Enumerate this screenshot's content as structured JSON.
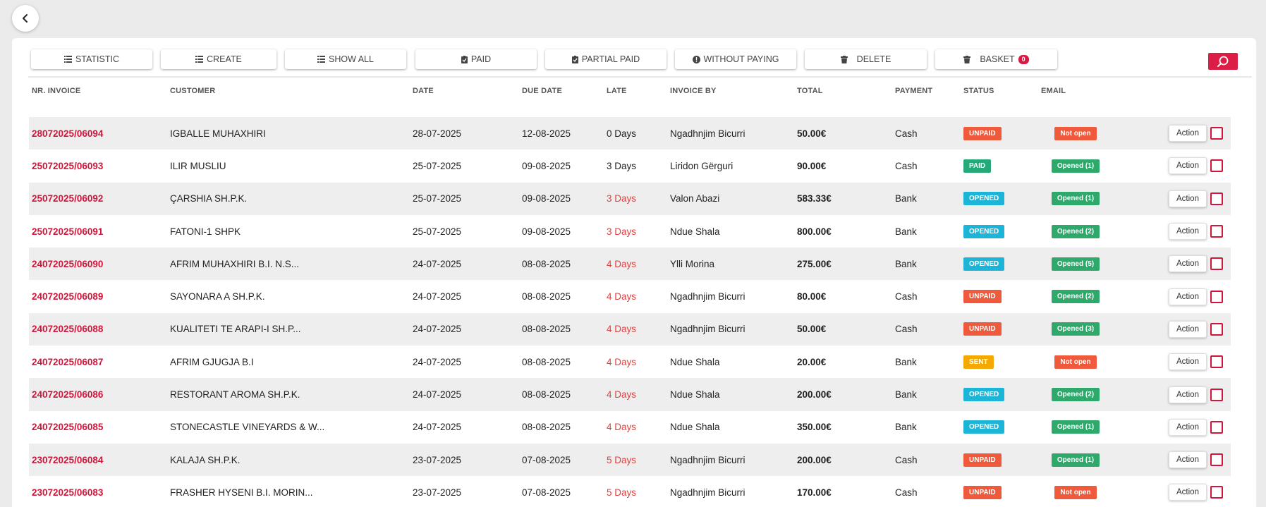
{
  "toolbar": {
    "statistic": "STATISTIC",
    "create": "CREATE",
    "show_all": "SHOW ALL",
    "paid": "PAID",
    "partial_paid": "PARTIAL PAID",
    "without_paying": "WITHOUT PAYING",
    "delete": "DELETE",
    "basket": "BASKET",
    "basket_count": "0"
  },
  "columns": {
    "nr_invoice": "NR. INVOICE",
    "customer": "CUSTOMER",
    "date": "DATE",
    "due_date": "DUE DATE",
    "late": "LATE",
    "invoice_by": "INVOICE BY",
    "total": "TOTAL",
    "payment": "PAYMENT",
    "status": "STATUS",
    "email": "EMAIL"
  },
  "action_label": "Action",
  "colors": {
    "accent": "#d0173b",
    "unpaid": "#f05a3c",
    "paid": "#24a978",
    "opened": "#1cb5d8",
    "sent": "#f5a900",
    "email_opened": "#2fa86c"
  },
  "rows": [
    {
      "invoice": "28072025/06094",
      "customer": "IGBALLE MUHAXHIRI",
      "date": "28-07-2025",
      "due": "12-08-2025",
      "late": "0 Days",
      "late_overdue": false,
      "by": "Ngadhnjim Bicurri",
      "total": "50.00€",
      "payment": "Cash",
      "status": "UNPAID",
      "email": "Not open"
    },
    {
      "invoice": "25072025/06093",
      "customer": "ILIR MUSLIU",
      "date": "25-07-2025",
      "due": "09-08-2025",
      "late": "3 Days",
      "late_overdue": false,
      "by": "Liridon Gërguri",
      "total": "90.00€",
      "payment": "Cash",
      "status": "PAID",
      "email": "Opened (1)"
    },
    {
      "invoice": "25072025/06092",
      "customer": "ÇARSHIA SH.P.K.",
      "date": "25-07-2025",
      "due": "09-08-2025",
      "late": "3 Days",
      "late_overdue": true,
      "by": "Valon Abazi",
      "total": "583.33€",
      "payment": "Bank",
      "status": "OPENED",
      "email": "Opened (1)"
    },
    {
      "invoice": "25072025/06091",
      "customer": "FATONI-1 SHPK",
      "date": "25-07-2025",
      "due": "09-08-2025",
      "late": "3 Days",
      "late_overdue": true,
      "by": "Ndue Shala",
      "total": "800.00€",
      "payment": "Bank",
      "status": "OPENED",
      "email": "Opened (2)"
    },
    {
      "invoice": "24072025/06090",
      "customer": "AFRIM MUHAXHIRI B.I. N.S...",
      "date": "24-07-2025",
      "due": "08-08-2025",
      "late": "4 Days",
      "late_overdue": true,
      "by": "Ylli Morina",
      "total": "275.00€",
      "payment": "Bank",
      "status": "OPENED",
      "email": "Opened (5)"
    },
    {
      "invoice": "24072025/06089",
      "customer": "SAYONARA A SH.P.K.",
      "date": "24-07-2025",
      "due": "08-08-2025",
      "late": "4 Days",
      "late_overdue": true,
      "by": "Ngadhnjim Bicurri",
      "total": "80.00€",
      "payment": "Cash",
      "status": "UNPAID",
      "email": "Opened (2)"
    },
    {
      "invoice": "24072025/06088",
      "customer": "KUALITETI TE ARAPI-I SH.P...",
      "date": "24-07-2025",
      "due": "08-08-2025",
      "late": "4 Days",
      "late_overdue": true,
      "by": "Ngadhnjim Bicurri",
      "total": "50.00€",
      "payment": "Cash",
      "status": "UNPAID",
      "email": "Opened (3)"
    },
    {
      "invoice": "24072025/06087",
      "customer": "AFRIM GJUGJA B.I",
      "date": "24-07-2025",
      "due": "08-08-2025",
      "late": "4 Days",
      "late_overdue": true,
      "by": "Ndue Shala",
      "total": "20.00€",
      "payment": "Bank",
      "status": "SENT",
      "email": "Not open"
    },
    {
      "invoice": "24072025/06086",
      "customer": "RESTORANT AROMA SH.P.K.",
      "date": "24-07-2025",
      "due": "08-08-2025",
      "late": "4 Days",
      "late_overdue": true,
      "by": "Ndue Shala",
      "total": "200.00€",
      "payment": "Bank",
      "status": "OPENED",
      "email": "Opened (2)"
    },
    {
      "invoice": "24072025/06085",
      "customer": "STONECASTLE VINEYARDS & W...",
      "date": "24-07-2025",
      "due": "08-08-2025",
      "late": "4 Days",
      "late_overdue": true,
      "by": "Ndue Shala",
      "total": "350.00€",
      "payment": "Bank",
      "status": "OPENED",
      "email": "Opened (1)"
    },
    {
      "invoice": "23072025/06084",
      "customer": "KALAJA SH.P.K.",
      "date": "23-07-2025",
      "due": "07-08-2025",
      "late": "5 Days",
      "late_overdue": true,
      "by": "Ngadhnjim Bicurri",
      "total": "200.00€",
      "payment": "Cash",
      "status": "UNPAID",
      "email": "Opened (1)"
    },
    {
      "invoice": "23072025/06083",
      "customer": "FRASHER HYSENI B.I. MORIN...",
      "date": "23-07-2025",
      "due": "07-08-2025",
      "late": "5 Days",
      "late_overdue": true,
      "by": "Ngadhnjim Bicurri",
      "total": "170.00€",
      "payment": "Cash",
      "status": "UNPAID",
      "email": "Not open"
    }
  ]
}
